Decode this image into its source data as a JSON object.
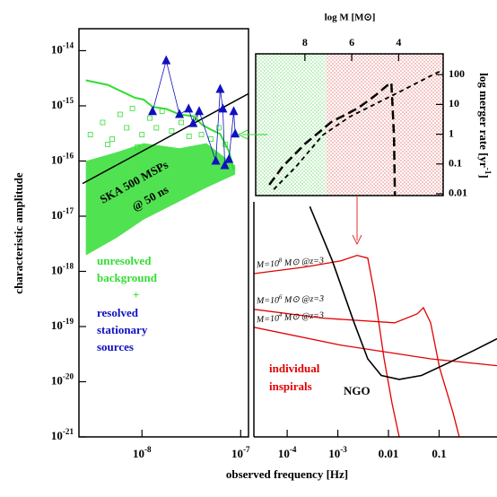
{
  "chart_data": [
    {
      "type": "line",
      "log_x": true,
      "log_y": true,
      "xlabel": "observed frequency [Hz]",
      "ylabel": "characteristic amplitude",
      "xaxis_position": "bottom",
      "yaxis_position": "left",
      "xlim": [
        2.3e-09,
        1.2e-07
      ],
      "ylim": [
        1e-21,
        2.5e-14
      ],
      "xticks": [
        {
          "value": 1e-08,
          "label": "10^-8"
        },
        {
          "value": 1e-07,
          "label": "10^-7"
        }
      ],
      "yticks": [
        {
          "value": 1e-21,
          "label": "10^-21"
        },
        {
          "value": 1e-20,
          "label": "10^-20"
        },
        {
          "value": 1e-19,
          "label": "10^-19"
        },
        {
          "value": 1e-18,
          "label": "10^-18"
        },
        {
          "value": 1e-17,
          "label": "10^-17"
        },
        {
          "value": 1e-16,
          "label": "10^-16"
        },
        {
          "value": 1e-15,
          "label": "10^-15"
        },
        {
          "value": 1e-14,
          "label": "10^-14"
        }
      ],
      "band": {
        "color": "#33dd33",
        "x": [
          2.7e-09,
          5.6e-09,
          1.04e-08,
          2.4e-08,
          4.5e-08,
          8.8e-08
        ],
        "upper": [
          1e-16,
          1.45e-16,
          2.1e-16,
          1.7e-16,
          2.1e-16,
          8.3e-17
        ],
        "lower": [
          1.95e-18,
          4.1e-18,
          8.7e-18,
          1.85e-17,
          3.3e-17,
          5.7e-17
        ]
      },
      "series": [
        {
          "color": "#33dd33",
          "marker": "square",
          "line": false,
          "x": [
            3e-09,
            4e-09,
            5e-09,
            6e-09,
            7e-09,
            8e-09,
            1e-08,
            1.2e-08,
            1.4e-08,
            1.6e-08,
            2e-08,
            2.5e-08,
            3e-08,
            3.5e-08,
            4e-08,
            5e-08,
            6e-08,
            7e-08,
            4.5e-09,
            9e-09
          ],
          "values": [
            3e-16,
            5e-16,
            2.5e-16,
            7e-16,
            4e-16,
            9e-16,
            3e-16,
            6e-16,
            4e-16,
            8e-16,
            3.5e-16,
            5e-16,
            2.8e-16,
            6e-16,
            3e-16,
            2.5e-16,
            4e-16,
            2e-16,
            2e-16,
            1.8e-16
          ]
        },
        {
          "color": "#33dd33",
          "width": 2,
          "x": [
            2.7e-09,
            4.5e-09,
            8.5e-09,
            1.04e-08,
            1.28e-08,
            1.76e-08,
            2.4e-08,
            3.3e-08,
            4.1e-08,
            5e-08,
            6.2e-08,
            7.6e-08,
            8.5e-08
          ],
          "values": [
            2.9e-15,
            2.4e-15,
            1.4e-15,
            1.3e-15,
            9.6e-16,
            8.8e-16,
            7e-16,
            6.5e-16,
            4.5e-16,
            3.7e-16,
            3.1e-16,
            1.5e-16,
            6.9e-17
          ]
        },
        {
          "color": "#000000",
          "width": 1.5,
          "x": [
            2.5e-09,
            1.2e-07
          ],
          "values": [
            3.9e-17,
            1.66e-15
          ]
        },
        {
          "color": "#1010c0",
          "width": 0.8,
          "marker": "triangle",
          "x": [
            1.28e-08,
            1.76e-08,
            2.4e-08,
            2.97e-08,
            3.3e-08,
            3.8e-08,
            5.6e-08,
            6.2e-08,
            6.6e-08,
            6.9e-08,
            7.6e-08,
            8.5e-08,
            8.8e-08
          ],
          "values": [
            7.9e-16,
            6.6e-15,
            7e-16,
            8.8e-16,
            4.8e-16,
            7.9e-16,
            1e-16,
            2e-15,
            8.8e-16,
            8.3e-17,
            1.07e-16,
            7.9e-16,
            3.1e-16
          ]
        }
      ],
      "annotations": [
        "SKA 500 MSPs",
        "@ 50 ns",
        "unresolved",
        "background",
        "+",
        "resolved",
        "stationary",
        "sources"
      ]
    },
    {
      "type": "line",
      "log_x": true,
      "log_y": true,
      "xaxis_position": "bottom",
      "xlim": [
        2.2e-05,
        1.39
      ],
      "ylim": [
        1e-21,
        2.5e-14
      ],
      "xticks": [
        {
          "value": 0.0001,
          "label": "10^-4"
        },
        {
          "value": 0.001,
          "label": "10^-3"
        },
        0.01,
        0.1
      ],
      "series": [
        {
          "color": "#e00000",
          "width": 1.3,
          "x": [
            2.2e-05,
            0.000226,
            0.00115,
            0.0024,
            0.0039,
            0.0054,
            0.0082,
            0.0118,
            0.0163
          ],
          "values": [
            9.1e-19,
            1.2e-18,
            1.55e-18,
            1.95e-18,
            1.74e-18,
            3.6e-19,
            2.6e-20,
            4e-21,
            1e-21
          ]
        },
        {
          "color": "#e00000",
          "width": 1.3,
          "x": [
            2.2e-05,
            0.00051,
            0.0133,
            0.037,
            0.049,
            0.068,
            0.102,
            0.188,
            0.25
          ],
          "values": [
            2.05e-19,
            1.42e-19,
            1.17e-19,
            1.7e-19,
            2.2e-19,
            1.17e-19,
            1.8e-20,
            2.75e-21,
            1e-21
          ]
        },
        {
          "color": "#e00000",
          "width": 1.3,
          "x": [
            2.2e-05,
            0.00115,
            0.068,
            1.39
          ],
          "values": [
            9.7e-20,
            4.6e-20,
            2.6e-20,
            1.95e-20
          ]
        },
        {
          "color": "#000000",
          "width": 1.6,
          "x": [
            0.00028,
            0.00077,
            0.0021,
            0.0039,
            0.0072,
            0.0163,
            0.045,
            0.153,
            0.52,
            1.39
          ],
          "values": [
            1.5e-17,
            1.6e-18,
            1.17e-19,
            2.6e-20,
            1.3e-20,
            1.1e-20,
            1.3e-20,
            2.2e-20,
            3.8e-20,
            6e-20
          ]
        }
      ],
      "annotations": [
        "individual",
        "inspirals",
        "NGO",
        "M=10^8 M⊙ @z=3",
        "M=10^6 M⊙ @z=3",
        "M=10^4 M⊙ @z=3"
      ]
    },
    {
      "type": "line",
      "log_x": false,
      "log_y": true,
      "xlabel": "log M [M⊙]",
      "ylabel": "log merger rate [yr^-1]",
      "xaxis_position": "top",
      "yaxis_position": "right",
      "xlim": [
        10.1,
        2.1
      ],
      "ylim": [
        0.0087,
        500
      ],
      "xticks": [
        8,
        6,
        4
      ],
      "yticks": [
        0.01,
        0.1,
        1,
        10,
        100
      ],
      "regions": [
        {
          "from": 10.1,
          "to": 7.1,
          "color": "#33cc33"
        },
        {
          "from": 7.1,
          "to": 2.1,
          "color": "#dd3333"
        }
      ],
      "series": [
        {
          "color": "#000000",
          "width": 2.5,
          "dash": "10 5",
          "x": [
            9.52,
            8.95,
            8.0,
            6.86,
            5.72,
            4.96,
            4.5,
            4.31,
            4.2,
            4.16
          ],
          "values": [
            0.02,
            0.081,
            0.47,
            2.6,
            7.6,
            21,
            43,
            53,
            0.93,
            0.009
          ]
        },
        {
          "color": "#000000",
          "width": 1.8,
          "dash": "5 4",
          "x": [
            9.33,
            8.38,
            7.24,
            6.1,
            4.96,
            3.82,
            2.68,
            2.14
          ],
          "values": [
            0.014,
            0.081,
            0.93,
            3.8,
            10.7,
            30,
            87,
            141
          ]
        }
      ]
    }
  ]
}
